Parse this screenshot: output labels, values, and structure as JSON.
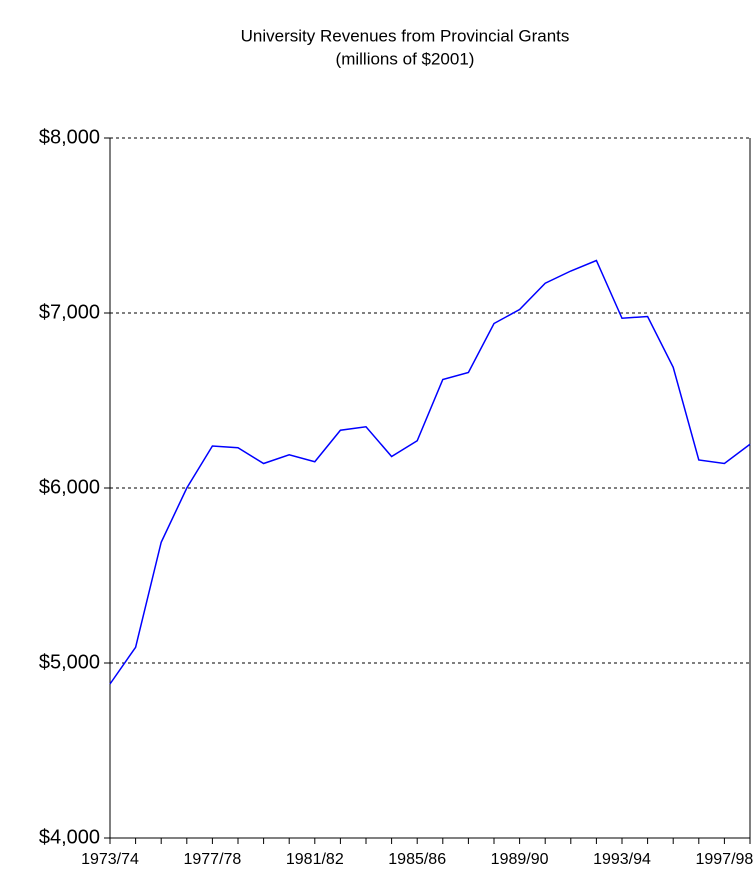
{
  "chart_data": {
    "type": "line",
    "title": "University Revenues from Provincial Grants",
    "subtitle": "(millions of $2001)",
    "categories": [
      "1973/74",
      null,
      null,
      null,
      "1977/78",
      null,
      null,
      null,
      "1981/82",
      null,
      null,
      null,
      "1985/86",
      null,
      null,
      null,
      "1989/90",
      null,
      null,
      null,
      "1993/94",
      null,
      null,
      null,
      "1997/98",
      null
    ],
    "series": [
      {
        "name": "Provincial Grants",
        "color": "#0000ff",
        "values": [
          4880,
          5090,
          5690,
          6000,
          6240,
          6230,
          6140,
          6190,
          6150,
          6330,
          6350,
          6180,
          6270,
          6620,
          6660,
          6940,
          7020,
          7170,
          7240,
          7300,
          6970,
          6980,
          6690,
          6160,
          6140,
          6250
        ]
      }
    ],
    "ylim": [
      4000,
      8000
    ],
    "yticks": [
      {
        "value": 4000,
        "label": "$4,000"
      },
      {
        "value": 5000,
        "label": "$5,000"
      },
      {
        "value": 6000,
        "label": "$6,000"
      },
      {
        "value": 7000,
        "label": "$7,000"
      },
      {
        "value": 8000,
        "label": "$8,000"
      }
    ],
    "grid": true
  }
}
